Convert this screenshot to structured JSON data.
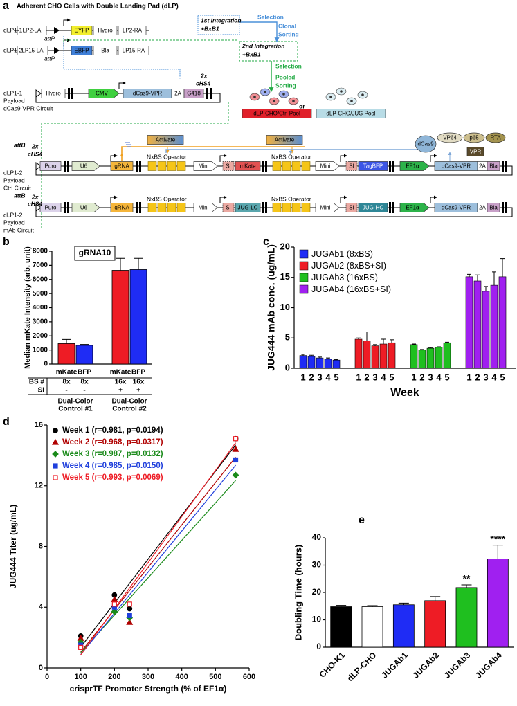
{
  "panel_a": {
    "label": "a",
    "title": "Adherent CHO Cells with Double Landing Pad (dLP)",
    "labels": [
      "dLP1-1",
      "attP",
      "1st Integration",
      "+BxB1",
      "Selection",
      "Clonal",
      "Sorting",
      "dLP1-2",
      "attP",
      "2nd Integration",
      "+BxB1",
      "Selection",
      "Pooled",
      "Sorting",
      "2x",
      "cHS4",
      "dLP1-1",
      "Payload",
      "dCas9-VPR Circuit",
      "or",
      "attB",
      "2x",
      "cHS4",
      "NxBS Operator",
      "NxBS Operator",
      "dLP1-2",
      "Payload",
      "Ctrl Circuit",
      "attB",
      "2x",
      "cHS4",
      "NxBS Operator",
      "NxBS Operator",
      "dLP1-2",
      "Payload",
      "mAb Circuit"
    ],
    "boxes": [
      "LP2-LA",
      "EYFP",
      "Hygro",
      "LP2-RA",
      "LP15-LA",
      "EBFP",
      "Bla",
      "LP15-RA",
      "Hygro",
      "CMV",
      "dCas9-VPR",
      "2A",
      "G418",
      "dLP-CHO/Ctrl Pool",
      "dLP-CHO/JUG Pool",
      "Activate",
      "Activate",
      "dCas9",
      "VP64",
      "p65",
      "RTA",
      "VPR",
      "Puro",
      "U6",
      "gRNA",
      "Mini",
      "SI",
      "mKate",
      "Mini",
      "SI",
      "TagBFP",
      "EF1α",
      "dCas9-VPR",
      "2A",
      "Bla",
      "Puro",
      "U6",
      "gRNA",
      "Mini",
      "SI",
      "JUG-LC",
      "Mini",
      "SI",
      "JUG-HC",
      "EF1α",
      "dCas9-VPR",
      "2A",
      "Bla"
    ]
  },
  "chart_data": [
    {
      "type": "bar",
      "panel_label": "b",
      "inset": "gRNA10",
      "ylabel": "Median mKate Intensity (arb. unit)",
      "categories": [
        "mKate",
        "BFP",
        "mKate",
        "BFP"
      ],
      "values": [
        1450,
        1330,
        6650,
        6700
      ],
      "errors": [
        300,
        60,
        850,
        800
      ],
      "colors": [
        "#ee1c25",
        "#1f2cf5",
        "#ee1c25",
        "#1f2cf5"
      ],
      "ylim": [
        0,
        8000
      ],
      "yticks": [
        0,
        1000,
        2000,
        3000,
        4000,
        5000,
        6000,
        7000,
        8000
      ],
      "table": {
        "row_labels": [
          "BS #",
          "SI"
        ],
        "rows": [
          [
            "8x",
            "8x",
            "16x",
            "16x"
          ],
          [
            "-",
            "-",
            "+",
            "+"
          ]
        ]
      },
      "groups": [
        [
          "Dual-Color",
          "Control #1"
        ],
        [
          "Dual-Color",
          "Control #2"
        ]
      ]
    },
    {
      "type": "grouped_bar",
      "panel_label": "c",
      "ylabel": "JUG444 mAb conc. (ug/mL)",
      "xlabel": "Week",
      "categories": [
        "1",
        "2",
        "3",
        "4",
        "5"
      ],
      "ylim": [
        0,
        20
      ],
      "yticks": [
        0,
        5,
        10,
        15,
        20
      ],
      "legend": "top-left",
      "series": [
        {
          "name": "JUGAb1 (8xBS)",
          "color": "#1f2cf5",
          "values": [
            2.1,
            1.95,
            1.7,
            1.5,
            1.35
          ],
          "errors": [
            0.2,
            0.2,
            0.15,
            0.2,
            0.1
          ]
        },
        {
          "name": "JUGAb2 (8xBS+SI)",
          "color": "#ee1c25",
          "values": [
            4.8,
            4.5,
            3.7,
            4.0,
            4.2
          ],
          "errors": [
            0.2,
            1.5,
            0.2,
            0.8,
            0.5
          ]
        },
        {
          "name": "JUGAb3 (16xBS)",
          "color": "#1fbf1f",
          "values": [
            3.9,
            3.0,
            3.3,
            3.45,
            4.2
          ],
          "errors": [
            0.1,
            0.1,
            0.1,
            0.1,
            0.1
          ]
        },
        {
          "name": "JUGAb4 (16xBS+SI)",
          "color": "#a020f0",
          "values": [
            15.1,
            14.4,
            12.7,
            13.7,
            15.1
          ],
          "errors": [
            0.4,
            1.0,
            0.8,
            2.2,
            3.0
          ]
        }
      ]
    },
    {
      "type": "scatter",
      "panel_label": "d",
      "xlabel": "crisprTF Promoter Strength (% of EF1α)",
      "ylabel": "JUG444 Titer (ug/mL)",
      "x": [
        100,
        200,
        245,
        560
      ],
      "xlim": [
        0,
        600
      ],
      "xticks": [
        0,
        100,
        200,
        300,
        400,
        500,
        600
      ],
      "ylim": [
        0,
        16
      ],
      "yticks": [
        0,
        4,
        8,
        12,
        16
      ],
      "legend": "top-left",
      "fit_lines": true,
      "series": [
        {
          "name": "Week 1 (r=0.981, p=0.0194)",
          "color": "#000000",
          "marker": "circle",
          "values": [
            2.1,
            4.8,
            3.9,
            15.1
          ]
        },
        {
          "name": "Week 2 (r=0.968, p=0.0317)",
          "color": "#b00000",
          "marker": "triangle",
          "values": [
            1.95,
            4.5,
            3.0,
            14.4
          ]
        },
        {
          "name": "Week 3 (r=0.987, p=0.0132)",
          "color": "#1a8a1a",
          "marker": "diamond",
          "values": [
            1.7,
            3.7,
            3.3,
            12.7
          ]
        },
        {
          "name": "Week 4 (r=0.985, p=0.0150)",
          "color": "#1f3fdc",
          "marker": "square",
          "values": [
            1.5,
            4.0,
            3.45,
            13.7
          ]
        },
        {
          "name": "Week 5 (r=0.993, p=0.0069)",
          "color": "#ee1c25",
          "marker": "square-open",
          "values": [
            1.35,
            4.2,
            4.2,
            15.1
          ]
        }
      ]
    },
    {
      "type": "bar",
      "panel_label": "e",
      "ylabel": "Doubling Time (hours)",
      "categories": [
        "CHO-K1",
        "dLP-CHO",
        "JUGAb1",
        "JUGAb2",
        "JUGAb3",
        "JUGAb4"
      ],
      "values": [
        14.8,
        14.8,
        15.5,
        17,
        21.8,
        32.3
      ],
      "errors": [
        0.5,
        0.4,
        0.6,
        1.5,
        1,
        5
      ],
      "colors": [
        "#000000",
        "#ffffff",
        "#1f2cf5",
        "#ee1c25",
        "#1fbf1f",
        "#a020f0"
      ],
      "significance": [
        null,
        null,
        null,
        null,
        "**",
        "****"
      ],
      "ylim": [
        0,
        40
      ],
      "yticks": [
        0,
        10,
        20,
        30,
        40
      ]
    }
  ]
}
